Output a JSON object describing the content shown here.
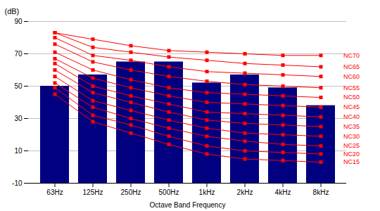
{
  "chart_data": {
    "type": "bar",
    "xlabel": "Octave Band Frequency",
    "ylabel": "(dB)",
    "categories": [
      "63Hz",
      "125Hz",
      "250Hz",
      "500Hz",
      "1kHz",
      "2kHz",
      "4kHz",
      "8kHz"
    ],
    "values": [
      50,
      57,
      65,
      65,
      52,
      57,
      49,
      38
    ],
    "color": "#000080",
    "series": [
      {
        "name": "NC70",
        "type": "line",
        "marker": "square",
        "color": "#ff0000",
        "values": [
          83,
          79,
          75,
          72,
          71,
          70,
          69,
          69
        ]
      },
      {
        "name": "NC65",
        "type": "line",
        "marker": "square",
        "color": "#ff0000",
        "values": [
          83,
          74,
          71,
          68,
          66,
          64,
          63,
          62
        ]
      },
      {
        "name": "NC60",
        "type": "line",
        "marker": "square",
        "color": "#ff0000",
        "values": [
          80,
          69,
          66,
          62,
          59,
          58,
          57,
          56
        ]
      },
      {
        "name": "NC55",
        "type": "line",
        "marker": "square",
        "color": "#ff0000",
        "values": [
          76,
          65,
          60,
          56,
          53,
          51,
          50,
          49
        ]
      },
      {
        "name": "NC50",
        "type": "line",
        "marker": "square",
        "color": "#ff0000",
        "values": [
          71,
          60,
          54,
          49,
          46,
          45,
          44,
          43
        ]
      },
      {
        "name": "NC45",
        "type": "line",
        "marker": "square",
        "color": "#ff0000",
        "values": [
          67,
          55,
          49,
          44,
          40,
          39,
          38,
          37
        ]
      },
      {
        "name": "NC40",
        "type": "line",
        "marker": "square",
        "color": "#ff0000",
        "values": [
          64,
          50,
          44,
          39,
          34,
          33,
          32,
          31
        ]
      },
      {
        "name": "NC35",
        "type": "line",
        "marker": "square",
        "color": "#ff0000",
        "values": [
          60,
          46,
          40,
          34,
          29,
          27,
          26,
          25
        ]
      },
      {
        "name": "NC30",
        "type": "line",
        "marker": "square",
        "color": "#ff0000",
        "values": [
          56,
          41,
          35,
          29,
          24,
          21,
          20,
          19
        ]
      },
      {
        "name": "NC25",
        "type": "line",
        "marker": "square",
        "color": "#ff0000",
        "values": [
          52,
          37,
          30,
          24,
          19,
          16,
          14,
          13
        ]
      },
      {
        "name": "NC20",
        "type": "line",
        "marker": "square",
        "color": "#ff0000",
        "values": [
          49,
          32,
          26,
          19,
          13,
          10,
          9,
          8
        ]
      },
      {
        "name": "NC15",
        "type": "line",
        "marker": "square",
        "color": "#ff0000",
        "values": [
          45,
          28,
          21,
          14,
          8,
          5,
          4,
          3
        ]
      }
    ],
    "ylim": [
      -10,
      90
    ],
    "yticks": [
      -10,
      10,
      30,
      50,
      70,
      90
    ],
    "grid": true
  }
}
